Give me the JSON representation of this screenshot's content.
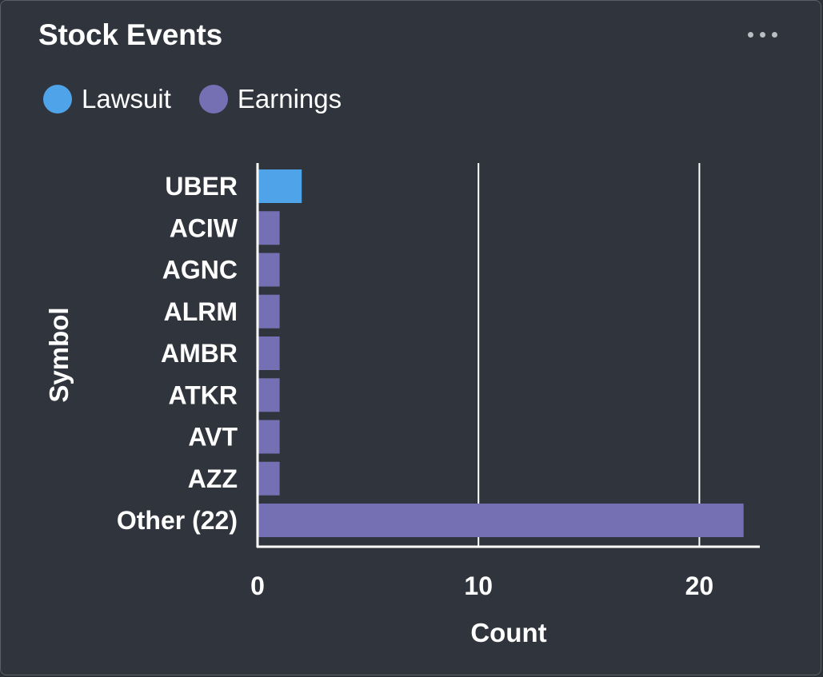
{
  "widget": {
    "title": "Stock Events",
    "more_icon": "more-horizontal-icon"
  },
  "colors": {
    "background": "#30353d",
    "lawsuit": "#4fa3e8",
    "earnings": "#7570b3",
    "axis": "#ffffff"
  },
  "chart_data": {
    "type": "bar",
    "orientation": "horizontal",
    "title": "Stock Events",
    "xlabel": "Count",
    "ylabel": "Symbol",
    "categories": [
      "UBER",
      "ACIW",
      "AGNC",
      "ALRM",
      "AMBR",
      "ATKR",
      "AVT",
      "AZZ",
      "Other (22)"
    ],
    "series": [
      {
        "name": "Lawsuit",
        "values": [
          2,
          0,
          0,
          0,
          0,
          0,
          0,
          0,
          0
        ]
      },
      {
        "name": "Earnings",
        "values": [
          0,
          1,
          1,
          1,
          1,
          1,
          1,
          1,
          22
        ]
      }
    ],
    "xlim": [
      0,
      22.7
    ],
    "xticks": [
      0,
      10,
      20
    ],
    "xgrid": true,
    "legend": "top-left"
  }
}
